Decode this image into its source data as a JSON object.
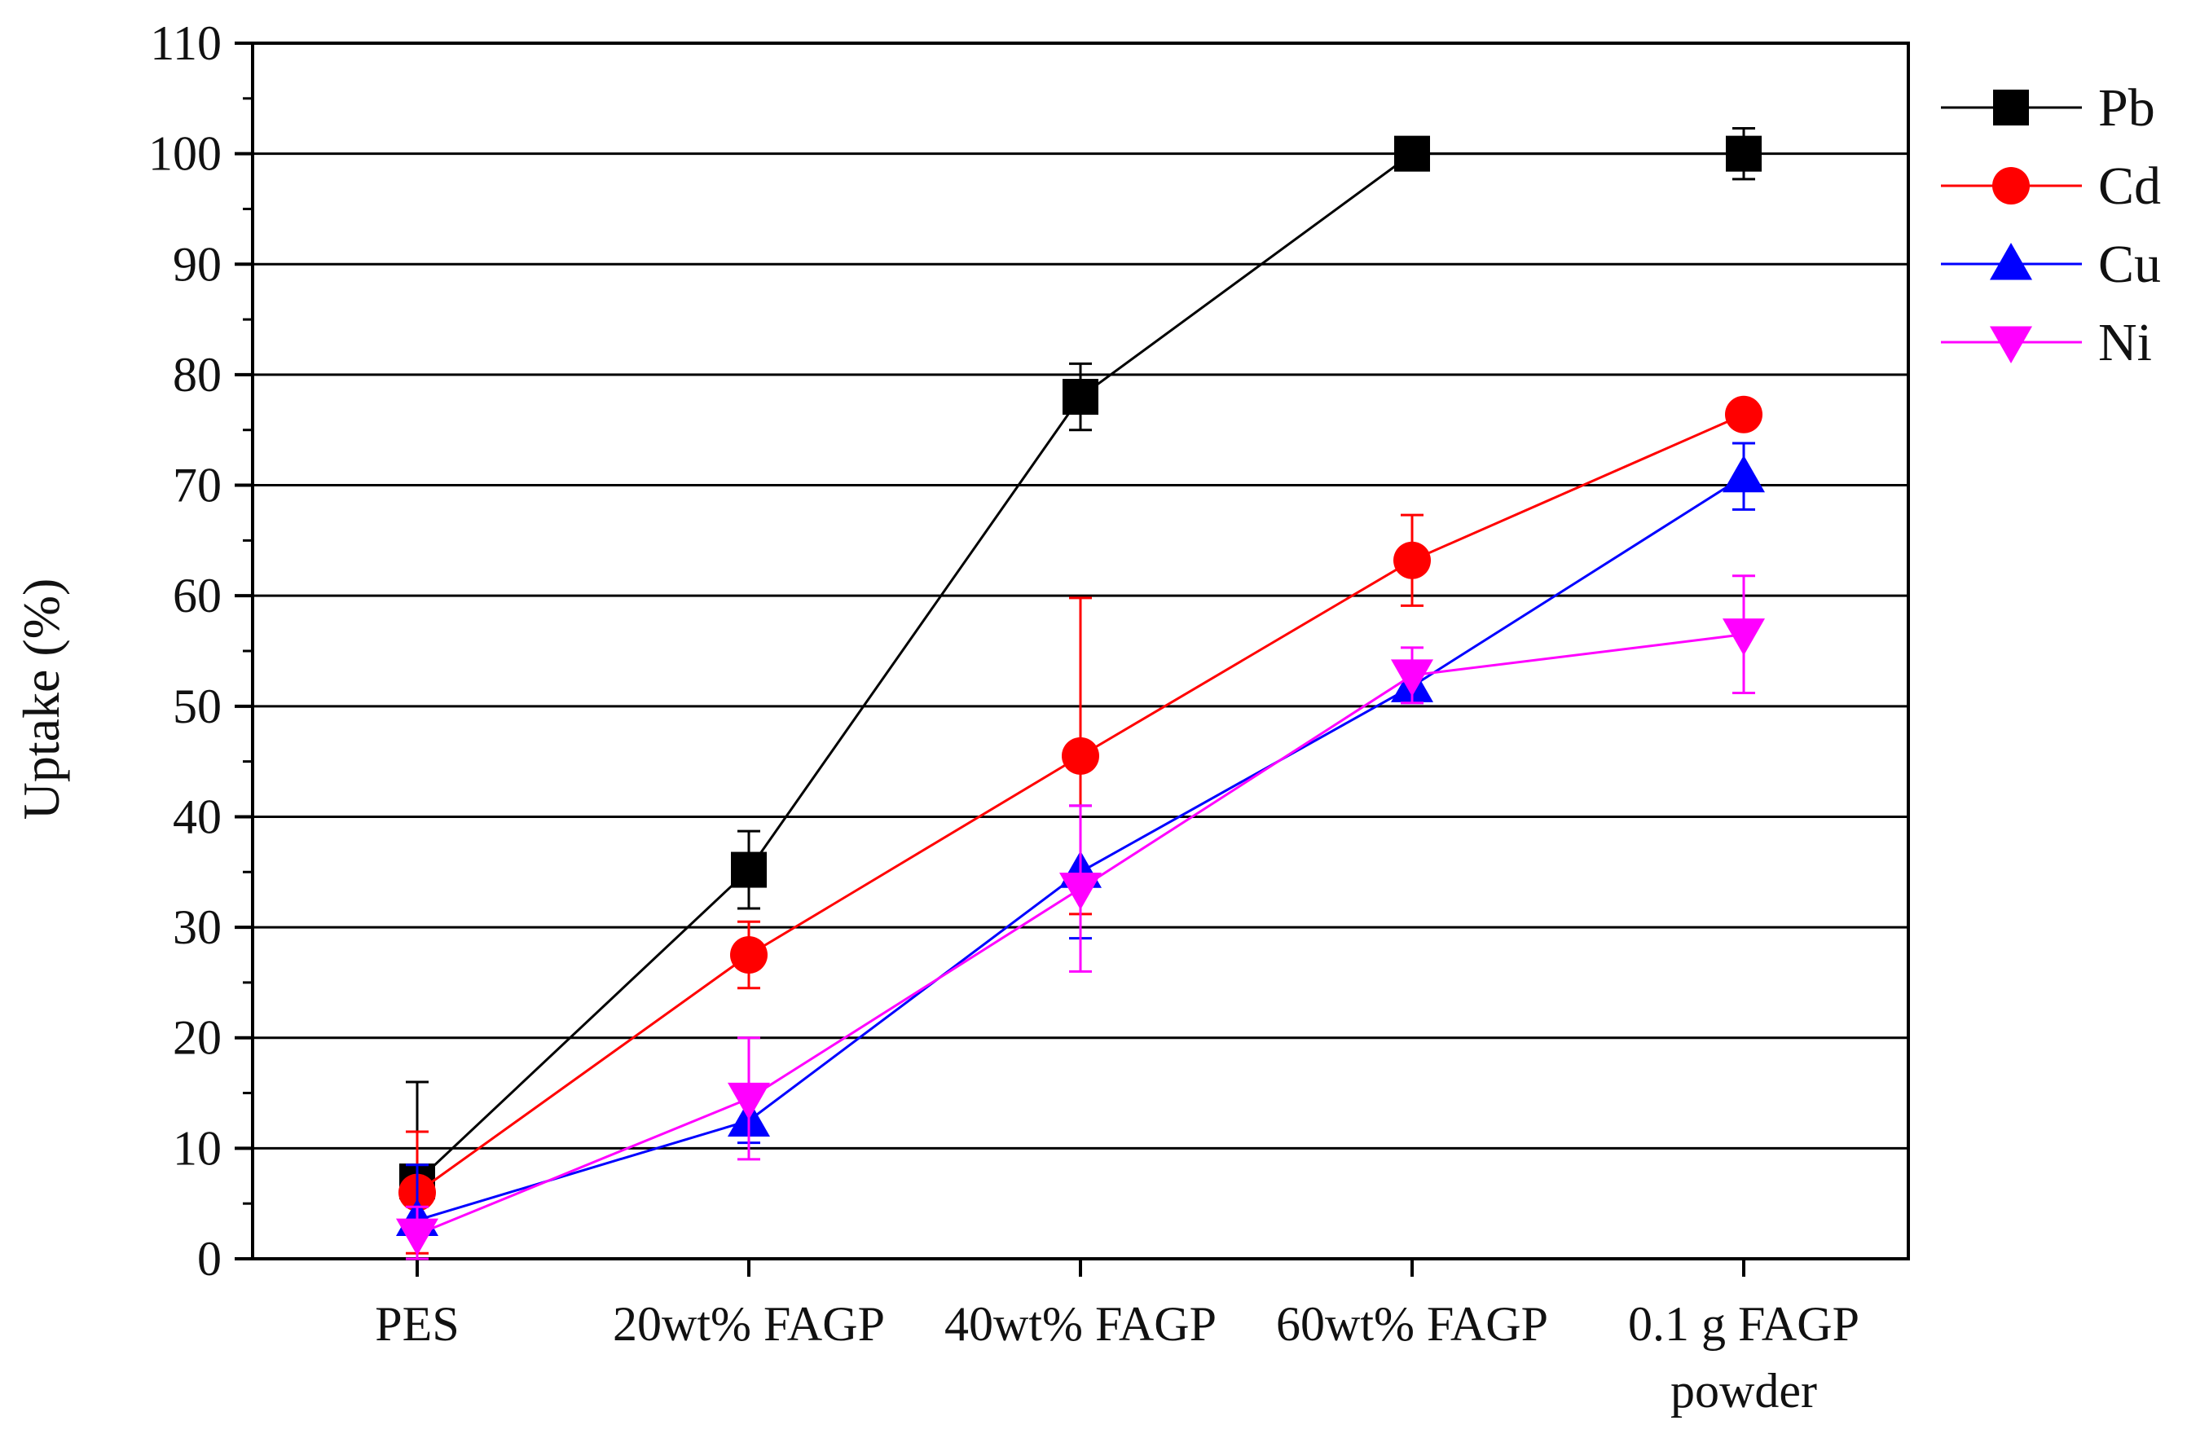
{
  "chart_data": {
    "type": "line",
    "title": "",
    "xlabel": "",
    "ylabel": "Uptake (%)",
    "ylim": [
      0,
      110
    ],
    "yticks": [
      0,
      10,
      20,
      30,
      40,
      50,
      60,
      70,
      80,
      90,
      100,
      110
    ],
    "categories": [
      [
        "PES"
      ],
      [
        "20wt% FAGP"
      ],
      [
        "40wt% FAGP"
      ],
      [
        "60wt% FAGP"
      ],
      [
        "0.1 g FAGP",
        "powder"
      ]
    ],
    "grid": "horizontal",
    "legend_position": "right",
    "series": [
      {
        "name": "Pb",
        "color": "#000000",
        "marker": "square",
        "values": [
          7.0,
          35.2,
          78.0,
          100.0,
          100.0
        ],
        "errors": [
          9.0,
          3.5,
          3.0,
          0.5,
          2.3
        ]
      },
      {
        "name": "Cd",
        "color": "#ff0000",
        "marker": "circle",
        "values": [
          6.0,
          27.5,
          45.5,
          63.2,
          76.4
        ],
        "errors": [
          5.5,
          3.0,
          14.3,
          4.1,
          1.0
        ]
      },
      {
        "name": "Cu",
        "color": "#0000ff",
        "marker": "triangle-up",
        "values": [
          3.5,
          12.5,
          35.0,
          51.8,
          70.8
        ],
        "errors": [
          5.0,
          2.0,
          6.0,
          1.5,
          3.0
        ]
      },
      {
        "name": "Ni",
        "color": "#ff00ff",
        "marker": "triangle-down",
        "values": [
          2.2,
          14.5,
          33.5,
          52.8,
          56.5
        ],
        "errors": [
          2.5,
          5.5,
          7.5,
          2.5,
          5.3
        ]
      }
    ]
  }
}
